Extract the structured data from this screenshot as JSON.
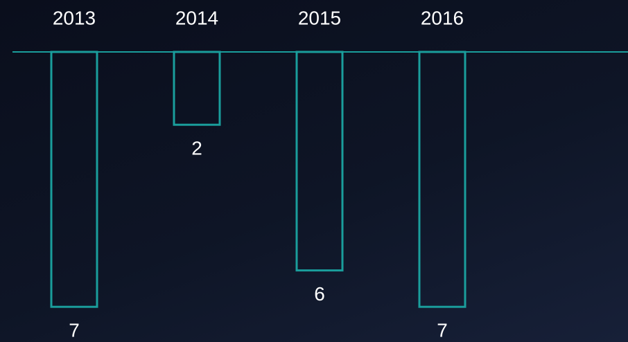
{
  "chart_data": {
    "type": "bar",
    "categories": [
      "2013",
      "2014",
      "2015",
      "2016"
    ],
    "values": [
      7,
      2,
      6,
      7
    ],
    "color": "#1a9e9c"
  }
}
